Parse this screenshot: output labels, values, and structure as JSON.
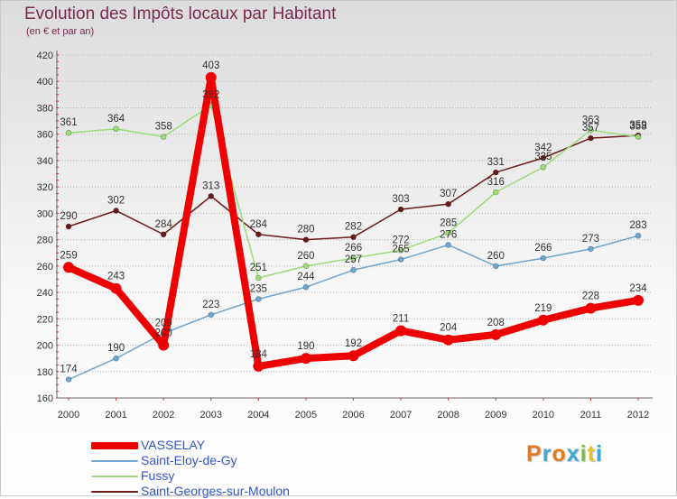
{
  "header": {
    "title": "Evolution des Impôts locaux par Habitant",
    "subtitle": "(en € et par an)"
  },
  "logo": {
    "text": "Proxiti",
    "colors": [
      "#e87a1e",
      "#3fa6d8",
      "#e87a1e",
      "#3fa6d8",
      "#7cc242",
      "#e8c21e",
      "#3fa6d8"
    ]
  },
  "chart_data": {
    "type": "line",
    "title": "Evolution des Impôts locaux par Habitant",
    "subtitle": "(en € et par an)",
    "x": [
      "2000",
      "2001",
      "2002",
      "2003",
      "2004",
      "2005",
      "2006",
      "2007",
      "2008",
      "2009",
      "2010",
      "2011",
      "2012"
    ],
    "ylim": [
      160,
      420
    ],
    "yticks": [
      160,
      180,
      200,
      220,
      240,
      260,
      280,
      300,
      320,
      340,
      360,
      380,
      400,
      420
    ],
    "grid": "dotted-horizontal",
    "legend_position": "bottom-left",
    "series": [
      {
        "name": "Saint-Georges-sur-Moulon",
        "color": "#6b1a1a",
        "values": [
          290,
          302,
          284,
          313,
          284,
          280,
          282,
          303,
          307,
          331,
          342,
          357,
          359
        ],
        "labels": [
          "290",
          "302",
          "284",
          "313",
          "284",
          "280",
          "282",
          "303",
          "307",
          "331",
          "342",
          "357",
          "359"
        ]
      },
      {
        "name": "Fussy",
        "color": "#9bdc78",
        "values": [
          361,
          364,
          358,
          382,
          251,
          260,
          266,
          272,
          285,
          316,
          335,
          363,
          358
        ],
        "labels": [
          "361",
          "364",
          "358",
          "382",
          "251",
          "260",
          "266",
          "272",
          "285",
          "316",
          "335",
          "363",
          "358"
        ]
      },
      {
        "name": "Saint-Eloy-de-Gy",
        "color": "#6ea6d0",
        "values": [
          174,
          190,
          209,
          223,
          235,
          244,
          257,
          265,
          276,
          260,
          266,
          273,
          283
        ],
        "labels": [
          "174",
          "190",
          "209",
          "223",
          "235",
          "244",
          "257",
          "265",
          "276",
          "260",
          "266",
          "273",
          "283"
        ]
      },
      {
        "name": "VASSELAY",
        "color": "#ee0000",
        "values": [
          259,
          243,
          200,
          403,
          184,
          190,
          192,
          211,
          204,
          208,
          219,
          228,
          234
        ],
        "labels": [
          "259",
          "243",
          "200",
          "403",
          "184",
          "190",
          "192",
          "211",
          "204",
          "208",
          "219",
          "228",
          "234"
        ]
      }
    ],
    "legend": [
      "VASSELAY",
      "Saint-Eloy-de-Gy",
      "Fussy",
      "Saint-Georges-sur-Moulon"
    ]
  }
}
